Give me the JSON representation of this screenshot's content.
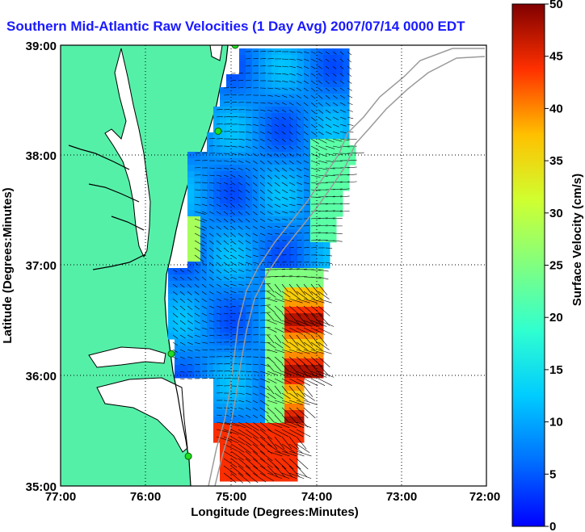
{
  "map": {
    "title": "Southern Mid-Atlantic Raw Velocities (1 Day Avg) 2007/07/14 0000 EDT",
    "xlabel": "Longitude (Degrees:Minutes)",
    "ylabel": "Latitude (Degrees:Minutes)",
    "lon_ticks": [
      "77:00",
      "76:00",
      "75:00",
      "74:00",
      "73:00",
      "72:00"
    ],
    "lat_ticks": [
      "39:00",
      "38:00",
      "37:00",
      "36:00",
      "35:00"
    ],
    "lon_range": [
      -77,
      -72
    ],
    "lat_range": [
      35,
      39
    ],
    "grid": "dotted",
    "land_color": "#55f0a8",
    "coast_color": "#000000",
    "isobath_color": "#9a9a9a",
    "station_color": "#22dd22"
  },
  "colorbar": {
    "label": "Surface Velocity (cm/s)",
    "ticks": [
      "0",
      "5",
      "10",
      "15",
      "20",
      "25",
      "30",
      "35",
      "40",
      "45",
      "50"
    ],
    "range": [
      0,
      50
    ],
    "colormap": "jet"
  },
  "stations": [
    {
      "lon": -74.95,
      "lat": 39.0
    },
    {
      "lon": -75.15,
      "lat": 38.22
    },
    {
      "lon": -75.7,
      "lat": 36.2
    },
    {
      "lon": -75.5,
      "lat": 35.27
    }
  ]
}
